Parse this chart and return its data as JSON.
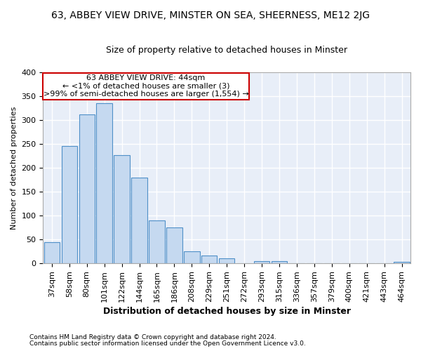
{
  "title_line1": "63, ABBEY VIEW DRIVE, MINSTER ON SEA, SHEERNESS, ME12 2JG",
  "title_line2": "Size of property relative to detached houses in Minster",
  "xlabel": "Distribution of detached houses by size in Minster",
  "ylabel": "Number of detached properties",
  "footer_line1": "Contains HM Land Registry data © Crown copyright and database right 2024.",
  "footer_line2": "Contains public sector information licensed under the Open Government Licence v3.0.",
  "annotation_line1": "63 ABBEY VIEW DRIVE: 44sqm",
  "annotation_line2": "← <1% of detached houses are smaller (3)",
  "annotation_line3": ">99% of semi-detached houses are larger (1,554) →",
  "bar_labels": [
    "37sqm",
    "58sqm",
    "80sqm",
    "101sqm",
    "122sqm",
    "144sqm",
    "165sqm",
    "186sqm",
    "208sqm",
    "229sqm",
    "251sqm",
    "272sqm",
    "293sqm",
    "315sqm",
    "336sqm",
    "357sqm",
    "379sqm",
    "400sqm",
    "421sqm",
    "443sqm",
    "464sqm"
  ],
  "bar_values": [
    45,
    246,
    312,
    335,
    227,
    180,
    90,
    75,
    26,
    17,
    10,
    0,
    5,
    5,
    0,
    0,
    0,
    0,
    0,
    0,
    3
  ],
  "bar_color": "#c5d9f0",
  "bar_edge_color": "#4f90c8",
  "plot_bg_color": "#e8eef8",
  "fig_bg_color": "#ffffff",
  "ylim": [
    0,
    400
  ],
  "yticks": [
    0,
    50,
    100,
    150,
    200,
    250,
    300,
    350,
    400
  ],
  "annotation_box_color": "#cc0000",
  "grid_color": "#ffffff",
  "title1_fontsize": 10,
  "title2_fontsize": 9,
  "xlabel_fontsize": 9,
  "ylabel_fontsize": 8,
  "tick_fontsize": 8,
  "annot_fontsize": 8
}
